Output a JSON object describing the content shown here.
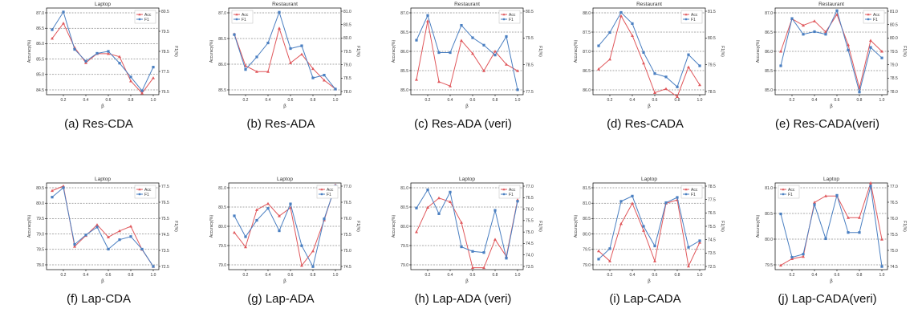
{
  "panels": [
    {
      "caption": "(a)  Res-CDA",
      "title": "Laptop",
      "xlabel": "β",
      "ylabel_left": "Accuracy(%)",
      "ylabel_right": "F1(%)",
      "xticks": [
        "0.2",
        "0.4",
        "0.6",
        "0.8",
        "1.0"
      ],
      "left_ticks": [
        "84.5",
        "85.0",
        "85.5",
        "86.0",
        "86.5",
        "87.0"
      ],
      "right_ticks": [
        "76.5",
        "77.5",
        "78.5",
        "79.5",
        "80.5"
      ]
    },
    {
      "caption": "(b)  Res-ADA",
      "title": "Restaurant",
      "xlabel": "β",
      "ylabel_left": "Accuracy(%)",
      "ylabel_right": "F1(%)",
      "xticks": [
        "0.2",
        "0.4",
        "0.6",
        "0.8",
        "1.0"
      ],
      "left_ticks": [
        "85.5",
        "86.0",
        "86.5",
        "87.0"
      ],
      "right_ticks": [
        "78.0",
        "78.5",
        "79.0",
        "79.5",
        "80.0",
        "80.5",
        "81.0"
      ]
    },
    {
      "caption": "(c)  Res-ADA (veri)",
      "title": "Restaurant",
      "xlabel": "β",
      "ylabel_left": "Accuracy(%)",
      "ylabel_right": "F1(%)",
      "xticks": [
        "0.2",
        "0.4",
        "0.6",
        "0.8",
        "1.0"
      ],
      "left_ticks": [
        "85.0",
        "85.5",
        "86.0",
        "86.5",
        "87.0"
      ],
      "right_ticks": [
        "77.5",
        "78.5",
        "79.5",
        "80.5"
      ]
    },
    {
      "caption": "(d)  Res-CADA",
      "title": "Restaurant",
      "xlabel": "β",
      "ylabel_left": "Accuracy(%)",
      "ylabel_right": "F1(%)",
      "xticks": [
        "0.2",
        "0.4",
        "0.6",
        "0.8",
        "1.0"
      ],
      "left_ticks": [
        "86.0",
        "86.5",
        "87.0",
        "87.5",
        "88.0"
      ],
      "right_ticks": [
        "78.5",
        "79.5",
        "80.5",
        "81.5"
      ]
    },
    {
      "caption": "(e)  Res-CADA(veri)",
      "title": "Restaurant",
      "xlabel": "β",
      "ylabel_left": "Accuracy(%)",
      "ylabel_right": "F1(%)",
      "xticks": [
        "0.2",
        "0.4",
        "0.6",
        "0.8",
        "1.0"
      ],
      "left_ticks": [
        "85.0",
        "85.5",
        "86.0",
        "86.5",
        "87.0"
      ],
      "right_ticks": [
        "78.0",
        "78.5",
        "79.0",
        "79.5",
        "80.0",
        "80.5",
        "81.0"
      ]
    },
    {
      "caption": "(f)  Lap-CDA",
      "title": "Laptop",
      "xlabel": "β",
      "ylabel_left": "Accuracy(%)",
      "ylabel_right": "F1(%)",
      "xticks": [
        "0.2",
        "0.4",
        "0.6",
        "0.8",
        "1.0"
      ],
      "left_ticks": [
        "78.0",
        "78.5",
        "79.0",
        "79.5",
        "80.0",
        "80.5"
      ],
      "right_ticks": [
        "72.5",
        "73.5",
        "74.5",
        "75.5",
        "76.5",
        "77.5"
      ]
    },
    {
      "caption": "(g)  Lap-ADA",
      "title": "Laptop",
      "xlabel": "β",
      "ylabel_left": "Accuracy(%)",
      "ylabel_right": "F1(%)",
      "xticks": [
        "0.2",
        "0.4",
        "0.6",
        "0.8",
        "1.0"
      ],
      "left_ticks": [
        "79.0",
        "79.5",
        "80.0",
        "80.5",
        "81.0"
      ],
      "right_ticks": [
        "74.5",
        "75.0",
        "75.5",
        "76.0",
        "76.5",
        "77.0"
      ]
    },
    {
      "caption": "(h)  Lap-ADA (veri)",
      "title": "Laptop",
      "xlabel": "β",
      "ylabel_left": "Accuracy(%)",
      "ylabel_right": "F1(%)",
      "xticks": [
        "0.2",
        "0.4",
        "0.6",
        "0.8",
        "1.0"
      ],
      "left_ticks": [
        "79.0",
        "79.5",
        "80.0",
        "80.5",
        "81.0"
      ],
      "right_ticks": [
        "73.5",
        "74.0",
        "74.5",
        "75.0",
        "75.5",
        "76.0",
        "76.5",
        "77.0"
      ]
    },
    {
      "caption": "(i)  Lap-CADA",
      "title": "Laptop",
      "xlabel": "β",
      "ylabel_left": "Accuracy(%)",
      "ylabel_right": "F1(%)",
      "xticks": [
        "0.2",
        "0.4",
        "0.6",
        "0.8",
        "1.0"
      ],
      "left_ticks": [
        "79.0",
        "79.5",
        "80.0",
        "80.5",
        "81.0",
        "81.5"
      ],
      "right_ticks": [
        "72.5",
        "73.5",
        "74.5",
        "75.5",
        "76.5",
        "77.5",
        "78.5"
      ]
    },
    {
      "caption": "(j)  Lap-CADA(veri)",
      "title": "Laptop",
      "xlabel": "β",
      "ylabel_left": "Accuracy(%)",
      "ylabel_right": "F1(%)",
      "xticks": [
        "0.2",
        "0.4",
        "0.6",
        "0.8",
        "1.0"
      ],
      "left_ticks": [
        "79.5",
        "80.0",
        "80.5",
        "81.0"
      ],
      "right_ticks": [
        "74.5",
        "75.0",
        "75.5",
        "76.0",
        "76.5",
        "77.0"
      ]
    }
  ],
  "chart_data": [
    {
      "type": "line",
      "title": "Laptop",
      "xlabel": "β",
      "ylabel": "Accuracy(%)",
      "y2label": "F1(%)",
      "legend": "top-right",
      "grid": "horizontal dashed",
      "x": [
        0.1,
        0.2,
        0.3,
        0.4,
        0.5,
        0.6,
        0.7,
        0.8,
        0.9,
        1.0
      ],
      "ylim": [
        84.25,
        87.1
      ],
      "y2lim": [
        76.5,
        80.9
      ],
      "series": [
        {
          "name": "Acc",
          "axis": "left",
          "color": "#e0575b",
          "values": [
            86.1,
            86.6,
            85.8,
            85.3,
            85.6,
            85.6,
            85.5,
            84.7,
            84.3,
            84.8
          ]
        },
        {
          "name": "F1",
          "axis": "right",
          "color": "#4a7fc1",
          "values": [
            79.8,
            80.7,
            78.8,
            78.2,
            78.6,
            78.7,
            78.1,
            77.4,
            76.7,
            77.9
          ]
        }
      ]
    },
    {
      "type": "line",
      "title": "Restaurant",
      "xlabel": "β",
      "ylabel": "Accuracy(%)",
      "y2label": "F1(%)",
      "legend": "top-left",
      "grid": "horizontal dashed",
      "x": [
        0.1,
        0.2,
        0.3,
        0.4,
        0.5,
        0.6,
        0.7,
        0.8,
        0.9,
        1.0
      ],
      "ylim": [
        85.5,
        87.0
      ],
      "y2lim": [
        77.9,
        81.0
      ],
      "series": [
        {
          "name": "Acc",
          "axis": "left",
          "color": "#e0575b",
          "values": [
            86.55,
            86.0,
            85.9,
            85.9,
            86.65,
            86.05,
            86.2,
            85.95,
            85.75,
            85.6
          ]
        },
        {
          "name": "F1",
          "axis": "right",
          "color": "#4a7fc1",
          "values": [
            80.05,
            78.8,
            79.25,
            79.75,
            80.85,
            79.55,
            79.65,
            78.5,
            78.6,
            78.1
          ]
        }
      ]
    },
    {
      "type": "line",
      "title": "Restaurant",
      "xlabel": "β",
      "ylabel": "Accuracy(%)",
      "y2label": "F1(%)",
      "legend": "top-right",
      "grid": "horizontal dashed",
      "x": [
        0.1,
        0.2,
        0.3,
        0.4,
        0.5,
        0.6,
        0.7,
        0.8,
        0.9,
        1.0
      ],
      "ylim": [
        85.0,
        87.0
      ],
      "y2lim": [
        77.0,
        80.5
      ],
      "series": [
        {
          "name": "Acc",
          "axis": "left",
          "color": "#e0575b",
          "values": [
            85.35,
            86.7,
            85.3,
            85.2,
            86.25,
            85.95,
            85.55,
            86.0,
            85.7,
            85.55
          ]
        },
        {
          "name": "F1",
          "axis": "right",
          "color": "#4a7fc1",
          "values": [
            79.2,
            80.2,
            78.7,
            78.7,
            79.8,
            79.3,
            79.0,
            78.6,
            79.35,
            77.2
          ]
        }
      ]
    },
    {
      "type": "line",
      "title": "Restaurant",
      "xlabel": "β",
      "ylabel": "Accuracy(%)",
      "y2label": "F1(%)",
      "legend": "top-right",
      "grid": "horizontal dashed",
      "x": [
        0.1,
        0.2,
        0.3,
        0.4,
        0.5,
        0.6,
        0.7,
        0.8,
        0.9,
        1.0
      ],
      "ylim": [
        85.8,
        88.0
      ],
      "y2lim": [
        78.1,
        82.0
      ],
      "series": [
        {
          "name": "Acc",
          "axis": "left",
          "color": "#e0575b",
          "values": [
            86.45,
            86.7,
            87.8,
            87.3,
            86.6,
            85.85,
            85.95,
            85.75,
            86.5,
            86.05
          ]
        },
        {
          "name": "F1",
          "axis": "right",
          "color": "#4a7fc1",
          "values": [
            80.3,
            80.9,
            81.8,
            81.3,
            80.0,
            79.05,
            78.9,
            78.45,
            79.9,
            79.4
          ]
        }
      ]
    },
    {
      "type": "line",
      "title": "Restaurant",
      "xlabel": "β",
      "ylabel": "Accuracy(%)",
      "y2label": "F1(%)",
      "legend": "top-right",
      "grid": "horizontal dashed",
      "x": [
        0.1,
        0.2,
        0.3,
        0.4,
        0.5,
        0.6,
        0.7,
        0.8,
        0.9,
        1.0
      ],
      "ylim": [
        85.0,
        87.0
      ],
      "y2lim": [
        77.8,
        81.1
      ],
      "series": [
        {
          "name": "Acc",
          "axis": "left",
          "color": "#e0575b",
          "values": [
            86.0,
            86.75,
            86.6,
            86.7,
            86.45,
            86.85,
            86.15,
            85.15,
            86.25,
            86.0
          ]
        },
        {
          "name": "F1",
          "axis": "right",
          "color": "#4a7fc1",
          "values": [
            78.9,
            80.7,
            80.1,
            80.2,
            80.1,
            81.0,
            79.5,
            77.9,
            79.6,
            79.2
          ]
        }
      ]
    },
    {
      "type": "line",
      "title": "Laptop",
      "xlabel": "β",
      "ylabel": "Accuracy(%)",
      "y2label": "F1(%)",
      "legend": "top-right",
      "grid": "horizontal dashed",
      "x": [
        0.1,
        0.2,
        0.3,
        0.4,
        0.5,
        0.6,
        0.7,
        0.8,
        0.9,
        1.0
      ],
      "ylim": [
        77.8,
        80.6
      ],
      "y2lim": [
        72.3,
        77.8
      ],
      "series": [
        {
          "name": "Acc",
          "axis": "left",
          "color": "#e0575b",
          "values": [
            80.35,
            80.5,
            78.55,
            78.9,
            79.25,
            78.85,
            79.05,
            79.2,
            78.45,
            77.9
          ]
        },
        {
          "name": "F1",
          "axis": "right",
          "color": "#4a7fc1",
          "values": [
            76.9,
            77.5,
            73.9,
            74.5,
            75.0,
            73.6,
            74.2,
            74.4,
            73.6,
            72.5
          ]
        }
      ]
    },
    {
      "type": "line",
      "title": "Laptop",
      "xlabel": "β",
      "ylabel": "Accuracy(%)",
      "y2label": "F1(%)",
      "legend": "top-right",
      "grid": "horizontal dashed",
      "x": [
        0.1,
        0.2,
        0.3,
        0.4,
        0.5,
        0.6,
        0.7,
        0.8,
        0.9,
        1.0
      ],
      "ylim": [
        78.9,
        81.0
      ],
      "y2lim": [
        74.3,
        77.2
      ],
      "series": [
        {
          "name": "Acc",
          "axis": "left",
          "color": "#e0575b",
          "values": [
            79.8,
            79.45,
            80.35,
            80.5,
            80.2,
            80.4,
            79.0,
            79.35,
            80.1,
            80.95
          ]
        },
        {
          "name": "F1",
          "axis": "right",
          "color": "#4a7fc1",
          "values": [
            76.1,
            75.4,
            75.95,
            76.35,
            75.6,
            76.5,
            75.1,
            74.4,
            76.0,
            77.1
          ]
        }
      ]
    },
    {
      "type": "line",
      "title": "Laptop",
      "xlabel": "β",
      "ylabel": "Accuracy(%)",
      "y2label": "F1(%)",
      "legend": "top-right",
      "grid": "horizontal dashed",
      "x": [
        0.1,
        0.2,
        0.3,
        0.4,
        0.5,
        0.6,
        0.7,
        0.8,
        0.9,
        1.0
      ],
      "ylim": [
        78.7,
        81.0
      ],
      "y2lim": [
        73.2,
        77.0
      ],
      "series": [
        {
          "name": "Acc",
          "axis": "left",
          "color": "#e0575b",
          "values": [
            79.7,
            80.35,
            80.6,
            80.5,
            79.95,
            78.75,
            78.75,
            79.5,
            79.05,
            80.55
          ]
        },
        {
          "name": "F1",
          "axis": "right",
          "color": "#4a7fc1",
          "values": [
            75.9,
            76.7,
            75.65,
            76.6,
            74.2,
            74.0,
            73.95,
            75.8,
            73.7,
            76.2
          ]
        }
      ]
    },
    {
      "type": "line",
      "title": "Laptop",
      "xlabel": "β",
      "ylabel": "Accuracy(%)",
      "y2label": "F1(%)",
      "legend": "top-right",
      "grid": "horizontal dashed",
      "x": [
        0.1,
        0.2,
        0.3,
        0.4,
        0.5,
        0.6,
        0.7,
        0.8,
        0.9,
        1.0
      ],
      "ylim": [
        78.95,
        81.5
      ],
      "y2lim": [
        72.4,
        79.0
      ],
      "series": [
        {
          "name": "Acc",
          "axis": "left",
          "color": "#e0575b",
          "values": [
            79.5,
            79.2,
            80.3,
            80.9,
            80.1,
            79.2,
            80.9,
            81.0,
            79.05,
            79.75
          ]
        },
        {
          "name": "F1",
          "axis": "right",
          "color": "#4a7fc1",
          "values": [
            73.2,
            74.0,
            77.6,
            78.0,
            75.7,
            74.2,
            77.5,
            77.9,
            74.1,
            74.6
          ]
        }
      ]
    },
    {
      "type": "line",
      "title": "Laptop",
      "xlabel": "β",
      "ylabel": "Accuracy(%)",
      "y2label": "F1(%)",
      "legend": "top-left",
      "grid": "horizontal dashed",
      "x": [
        0.1,
        0.2,
        0.3,
        0.4,
        0.5,
        0.6,
        0.7,
        0.8,
        0.9,
        1.0
      ],
      "ylim": [
        79.0,
        81.0
      ],
      "y2lim": [
        74.4,
        77.2
      ],
      "series": [
        {
          "name": "Acc",
          "axis": "left",
          "color": "#e0575b",
          "values": [
            79.1,
            79.25,
            79.3,
            80.55,
            80.7,
            80.7,
            80.2,
            80.2,
            81.0,
            79.7
          ]
        },
        {
          "name": "F1",
          "axis": "right",
          "color": "#4a7fc1",
          "values": [
            76.2,
            74.8,
            74.9,
            76.5,
            75.4,
            76.8,
            75.6,
            75.6,
            77.1,
            74.5
          ]
        }
      ]
    }
  ]
}
